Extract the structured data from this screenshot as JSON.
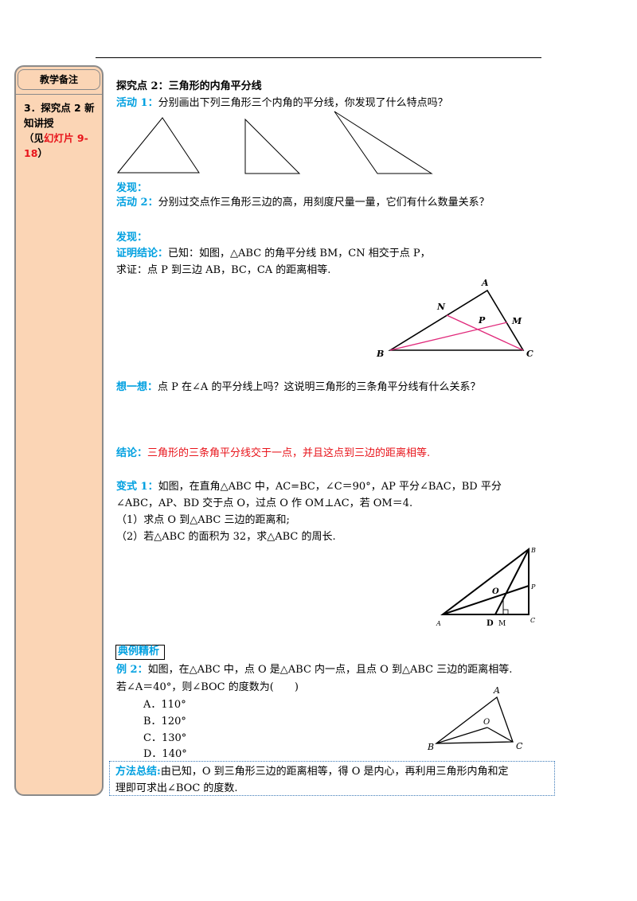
{
  "sidebar": {
    "header": "教学备注",
    "note_prefix": "3．探究点 2 新知讲授",
    "note_paren_open": "（见",
    "note_red": "幻灯片 9-18",
    "note_paren_close": "）"
  },
  "section": {
    "title": "探究点 2：三角形的内角平分线",
    "activity1_label": "活动 1：",
    "activity1_text": "分别画出下列三角形三个内角的平分线，你发现了什么特点吗？",
    "discover1_label": "发现：",
    "activity2_label": "活动 2：",
    "activity2_text": "分别过交点作三角形三边的高，用刻度尺量一量，它们有什么数量关系？",
    "discover2_label": "发现：",
    "proof_label": "证明结论：",
    "proof_text": "已知：如图，△ABC 的角平分线 BM，CN 相交于点 P，",
    "proof_text2": "求证：点 P 到三边 AB，BC，CA 的距离相等.",
    "think_label": "想一想：",
    "think_text": "点 P 在∠A 的平分线上吗？这说明三角形的三条角平分线有什么关系？",
    "conclusion_label": "结论：",
    "conclusion_text": "三角形的三条角平分线交于一点，并且这点到三边的距离相等.",
    "variant_label": "变式 1：",
    "variant_line1": "如图，在直角△ABC 中，AC=BC，∠C＝90°，AP 平分∠BAC，BD 平分",
    "variant_line2": "∠ABC，AP、BD 交于点 O，过点 O 作 OM⊥AC，若 OM＝4.",
    "variant_q1": "（1）求点 O 到△ABC 三边的距离和;",
    "variant_q2": "（2）若△ABC 的面积为 32，求△ABC 的周长.",
    "example_tag": "典例精析",
    "example_label": "例 2：",
    "example_line1": "如图，在△ABC 中，点 O 是△ABC 内一点，且点 O 到△ABC 三边的距离相等.",
    "example_line2": "若∠A＝40°，则∠BOC 的度数为(　　)",
    "options": [
      "A．110°",
      "B．120°",
      "C．130°",
      "D．140°"
    ],
    "summary_label": "方法总结:",
    "summary_line1": "由已知，O 到三角形三边的距离相等，得 O 是内心，再利用三角形内角和定",
    "summary_line2": "理即可求出∠BOC 的度数."
  },
  "figures": {
    "fig1_labels": {
      "A": "A",
      "B": "B",
      "C": "C",
      "N": "N",
      "M": "M",
      "P": "P"
    },
    "fig2_labels": {
      "A": "A",
      "B": "B",
      "C": "C",
      "P": "P",
      "O": "O",
      "D": "D",
      "M": "M"
    },
    "fig3_labels": {
      "A": "A",
      "B": "B",
      "C": "C",
      "O": "O"
    },
    "bisector_color": "#e0287a"
  }
}
